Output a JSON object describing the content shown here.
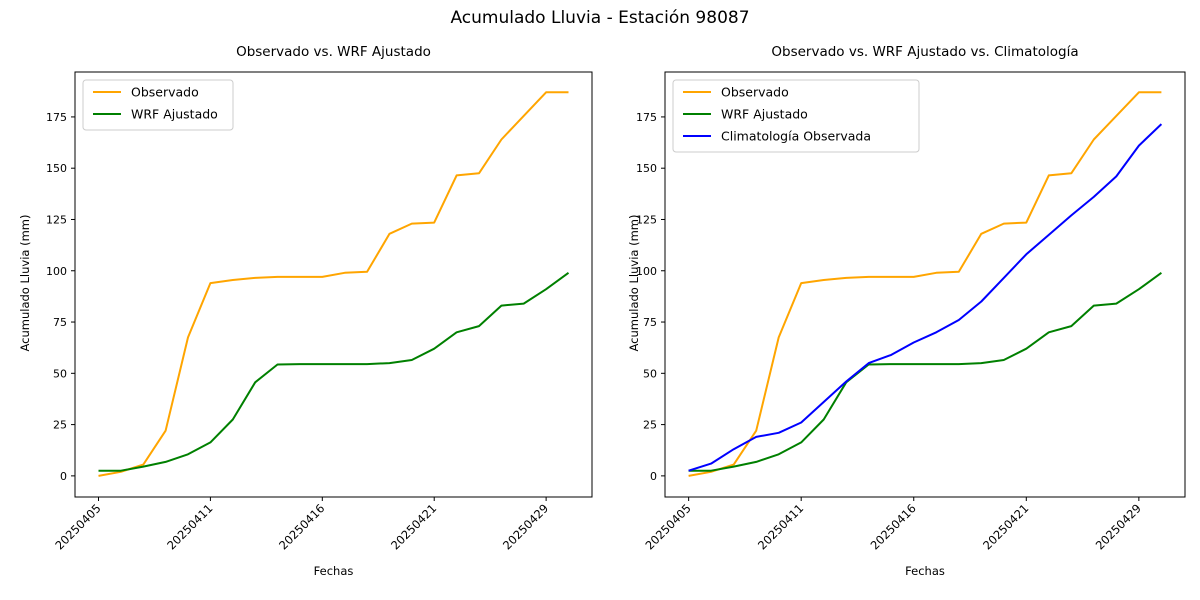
{
  "suptitle": "Acumulado Lluvia - Estación 98087",
  "chart_data": [
    {
      "type": "line",
      "title": "Observado vs. WRF Ajustado",
      "xlabel": "Fechas",
      "ylabel": "Acumulado Lluvia (mm)",
      "x": [
        0,
        1,
        2,
        3,
        4,
        5,
        6,
        7,
        8,
        9,
        10,
        11,
        12,
        13,
        14,
        15,
        16,
        17,
        18,
        19,
        20,
        21
      ],
      "x_tick_positions": [
        0,
        5,
        10,
        15,
        20
      ],
      "x_tick_labels": [
        "20250405",
        "20250411",
        "20250416",
        "20250421",
        "20250429"
      ],
      "y_ticks": [
        0,
        25,
        50,
        75,
        100,
        125,
        150,
        175
      ],
      "xlim": [
        -1.05,
        22.05
      ],
      "ylim": [
        -10.3,
        196.9
      ],
      "grid": false,
      "legend_position": "upper left",
      "series": [
        {
          "name": "Observado",
          "color": "#FFA500",
          "values": [
            0,
            2,
            5.5,
            22,
            67.5,
            94,
            95.5,
            96.5,
            97,
            97,
            97,
            99,
            99.5,
            118,
            123,
            123.5,
            146.5,
            147.5,
            164,
            175.5,
            187,
            187
          ]
        },
        {
          "name": "WRF Ajustado",
          "color": "#008000",
          "values": [
            2.5,
            2.5,
            4.5,
            6.8,
            10.5,
            16.3,
            27.5,
            45.6,
            54.3,
            54.5,
            54.5,
            54.5,
            54.5,
            55,
            56.5,
            62,
            70,
            73,
            83,
            84,
            91,
            99
          ]
        }
      ]
    },
    {
      "type": "line",
      "title": "Observado vs. WRF Ajustado vs. Climatología",
      "xlabel": "Fechas",
      "ylabel": "Acumulado Lluvia (mm)",
      "x": [
        0,
        1,
        2,
        3,
        4,
        5,
        6,
        7,
        8,
        9,
        10,
        11,
        12,
        13,
        14,
        15,
        16,
        17,
        18,
        19,
        20,
        21
      ],
      "x_tick_positions": [
        0,
        5,
        10,
        15,
        20
      ],
      "x_tick_labels": [
        "20250405",
        "20250411",
        "20250416",
        "20250421",
        "20250429"
      ],
      "y_ticks": [
        0,
        25,
        50,
        75,
        100,
        125,
        150,
        175
      ],
      "xlim": [
        -1.05,
        22.05
      ],
      "ylim": [
        -10.3,
        196.9
      ],
      "grid": false,
      "legend_position": "upper left",
      "series": [
        {
          "name": "Observado",
          "color": "#FFA500",
          "values": [
            0,
            2,
            5.5,
            22,
            67.5,
            94,
            95.5,
            96.5,
            97,
            97,
            97,
            99,
            99.5,
            118,
            123,
            123.5,
            146.5,
            147.5,
            164,
            175.5,
            187,
            187
          ]
        },
        {
          "name": "WRF Ajustado",
          "color": "#008000",
          "values": [
            2.5,
            2.5,
            4.5,
            6.8,
            10.5,
            16.3,
            27.5,
            45.6,
            54.3,
            54.5,
            54.5,
            54.5,
            54.5,
            55,
            56.5,
            62,
            70,
            73,
            83,
            84,
            91,
            99
          ]
        },
        {
          "name": "Climatología Observada",
          "color": "#0000FF",
          "values": [
            2.5,
            6,
            13,
            19,
            21,
            26,
            36,
            46,
            55,
            59,
            65,
            70,
            76,
            85,
            96.5,
            108,
            117.5,
            127,
            136,
            146,
            161,
            171.5
          ]
        }
      ]
    }
  ]
}
